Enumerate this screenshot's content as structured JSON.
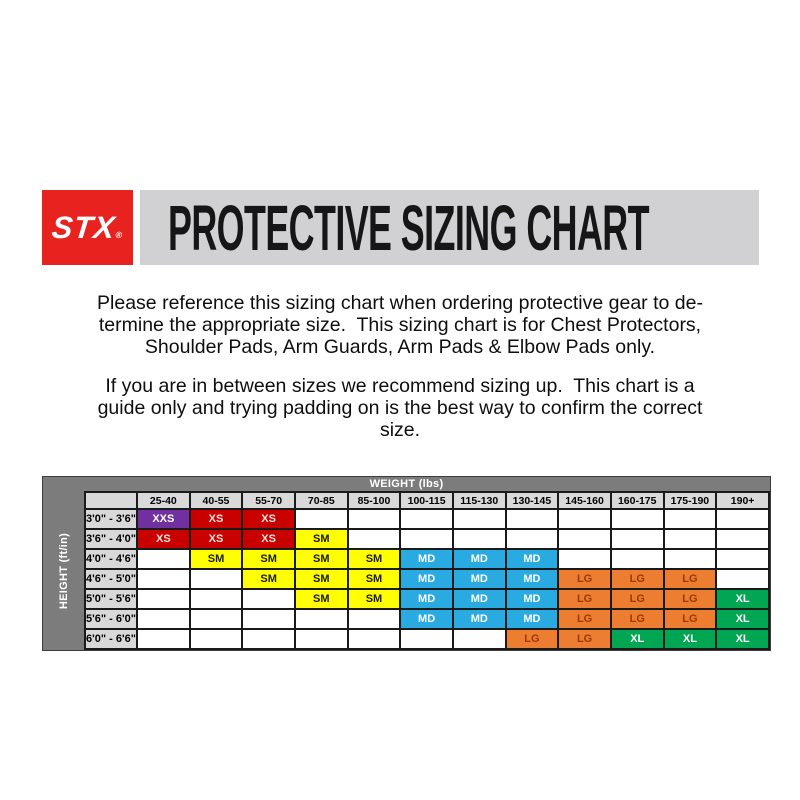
{
  "header": {
    "logo_text": "STX",
    "logo_reg_mark": "®",
    "title": "PROTECTIVE SIZING CHART"
  },
  "intro": {
    "para1": "Please reference this sizing chart when ordering protective gear to de-\ntermine the appropriate size.  This sizing chart is for Chest Protectors,\nShoulder Pads, Arm Guards, Arm Pads & Elbow Pads only.",
    "para2": "If you are in between sizes we recommend sizing up.  This chart is a\nguide only and trying padding on is the best way to confirm the correct\nsize."
  },
  "chart_data": {
    "type": "table",
    "title": "PROTECTIVE SIZING CHART",
    "x_axis_label": "WEIGHT (lbs)",
    "y_axis_label": "HEIGHT (ft/in)",
    "weight_columns": [
      "25-40",
      "40-55",
      "55-70",
      "70-85",
      "85-100",
      "100-115",
      "115-130",
      "130-145",
      "145-160",
      "160-175",
      "175-190",
      "190+"
    ],
    "height_rows": [
      "3'0\" - 3'6\"",
      "3'6\" - 4'0\"",
      "4'0\" - 4'6\"",
      "4'6\" - 5'0\"",
      "5'0\" - 5'6\"",
      "5'6\" - 6'0\"",
      "6'0\" - 6'6\""
    ],
    "cells": [
      [
        "XXS",
        "XS",
        "XS",
        "",
        "",
        "",
        "",
        "",
        "",
        "",
        "",
        ""
      ],
      [
        "XS",
        "XS",
        "XS",
        "SM",
        "",
        "",
        "",
        "",
        "",
        "",
        "",
        ""
      ],
      [
        "",
        "SM",
        "SM",
        "SM",
        "SM",
        "MD",
        "MD",
        "MD",
        "",
        "",
        "",
        ""
      ],
      [
        "",
        "",
        "SM",
        "SM",
        "SM",
        "MD",
        "MD",
        "MD",
        "LG",
        "LG",
        "LG",
        ""
      ],
      [
        "",
        "",
        "",
        "SM",
        "SM",
        "MD",
        "MD",
        "MD",
        "LG",
        "LG",
        "LG",
        "XL"
      ],
      [
        "",
        "",
        "",
        "",
        "",
        "MD",
        "MD",
        "MD",
        "LG",
        "LG",
        "LG",
        "XL"
      ],
      [
        "",
        "",
        "",
        "",
        "",
        "",
        "",
        "LG",
        "LG",
        "XL",
        "XL",
        "XL"
      ]
    ]
  },
  "colors": {
    "brand_red": "#E8231F",
    "title_bar_gray": "#D1D1D3",
    "axis_band_gray": "#7D7C7C",
    "header_cell_gray": "#D9D9D9",
    "grid_line": "#1A1A1A",
    "sizes": {
      "XXS": {
        "bg": "#7030A0",
        "fg": "#FFFFFF"
      },
      "XS": {
        "bg": "#C80000",
        "fg": "#FFE3E3"
      },
      "SM": {
        "bg": "#FFFF00",
        "fg": "#1A1A1A"
      },
      "MD": {
        "bg": "#29ABE2",
        "fg": "#FFFFFF"
      },
      "LG": {
        "bg": "#ED7D31",
        "fg": "#9C3A00"
      },
      "XL": {
        "bg": "#00A651",
        "fg": "#FFFFFF"
      }
    }
  }
}
